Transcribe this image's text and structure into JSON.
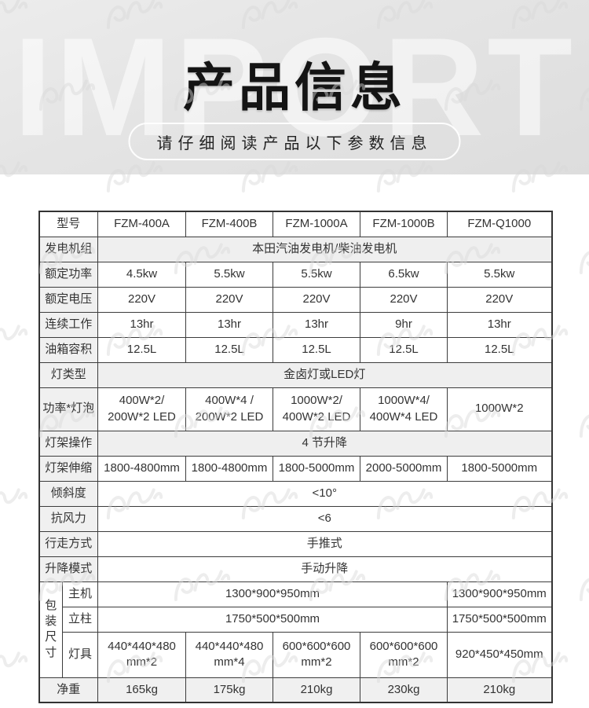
{
  "header": {
    "watermark_text": "IMPORT",
    "title": "产品信息",
    "subtitle": "请仔细阅读产品以下参数信息"
  },
  "colors": {
    "hero_background": "#e5e5e5",
    "table_border": "#3c3c3c",
    "label_cell_bg": "#f0f0f0",
    "shaded_row_bg": "#efefef",
    "text": "#333333",
    "title": "#141414"
  },
  "table": {
    "model_row": {
      "label": "型号",
      "models": [
        "FZM-400A",
        "FZM-400B",
        "FZM-1000A",
        "FZM-1000B",
        "FZM-Q1000"
      ]
    },
    "generator": {
      "label": "发电机组",
      "value": "本田汽油发电机/柴油发电机"
    },
    "rated_power": {
      "label": "额定功率",
      "values": [
        "4.5kw",
        "5.5kw",
        "5.5kw",
        "6.5kw",
        "5.5kw"
      ]
    },
    "rated_voltage": {
      "label": "额定电压",
      "values": [
        "220V",
        "220V",
        "220V",
        "220V",
        "220V"
      ]
    },
    "continuous_work": {
      "label": "连续工作",
      "values": [
        "13hr",
        "13hr",
        "13hr",
        "9hr",
        "13hr"
      ]
    },
    "tank_volume": {
      "label": "油箱容积",
      "values": [
        "12.5L",
        "12.5L",
        "12.5L",
        "12.5L",
        "12.5L"
      ]
    },
    "lamp_type": {
      "label": "灯类型",
      "value": "金卤灯或LED灯"
    },
    "power_bulbs": {
      "label": "功率*灯泡",
      "values": [
        "400W*2/\n200W*2 LED",
        "400W*4 /\n200W*2 LED",
        "1000W*2/\n400W*2 LED",
        "1000W*4/\n400W*4 LED",
        "1000W*2"
      ]
    },
    "frame_operation": {
      "label": "灯架操作",
      "value": "4 节升降"
    },
    "frame_extension": {
      "label": "灯架伸缩",
      "values": [
        "1800-4800mm",
        "1800-4800mm",
        "1800-5000mm",
        "2000-5000mm",
        "1800-5000mm"
      ]
    },
    "tilt": {
      "label": "倾斜度",
      "value": "<10°"
    },
    "wind_resistance": {
      "label": "抗风力",
      "value": "<6"
    },
    "moving_mode": {
      "label": "行走方式",
      "value": "手推式"
    },
    "lift_mode": {
      "label": "升降模式",
      "value": "手动升降"
    },
    "packing": {
      "label": "包装\n尺寸",
      "host": {
        "label": "主机",
        "value": "1300*900*950mm",
        "last_value": "1300*900*950mm"
      },
      "pole": {
        "label": "立柱",
        "value": "1750*500*500mm",
        "last_value": "1750*500*500mm"
      },
      "lamp": {
        "label": "灯具",
        "values": [
          "440*440*480\nmm*2",
          "440*440*480\nmm*4",
          "600*600*600\nmm*2",
          "600*600*600\nmm*2",
          "920*450*450mm"
        ]
      }
    },
    "net_weight": {
      "label": "净重",
      "values": [
        "165kg",
        "175kg",
        "210kg",
        "230kg",
        "210kg"
      ]
    }
  }
}
